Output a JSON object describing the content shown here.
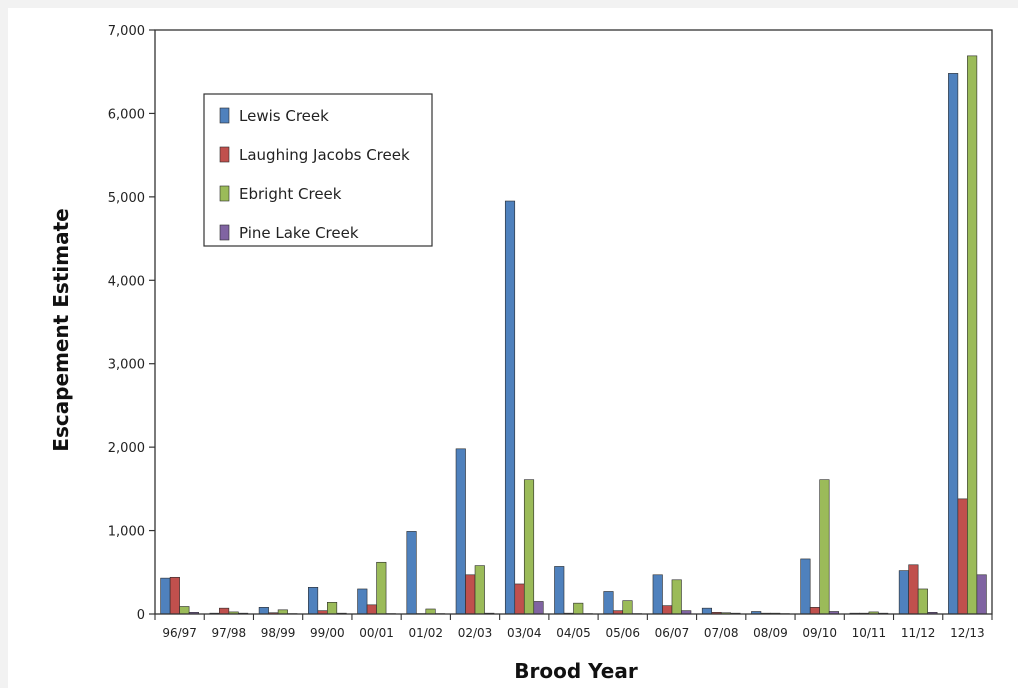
{
  "chart_data": {
    "type": "bar",
    "xlabel": "Brood Year",
    "ylabel": "Escapement Estimate",
    "ylim": [
      0,
      7000
    ],
    "yticks": [
      0,
      1000,
      2000,
      3000,
      4000,
      5000,
      6000,
      7000
    ],
    "ytick_labels": [
      "0",
      "1,000",
      "2,000",
      "3,000",
      "4,000",
      "5,000",
      "6,000",
      "7,000"
    ],
    "grid": false,
    "legend_position": "top-left",
    "categories": [
      "96/97",
      "97/98",
      "98/99",
      "99/00",
      "00/01",
      "01/02",
      "02/03",
      "03/04",
      "04/05",
      "05/06",
      "06/07",
      "07/08",
      "08/09",
      "09/10",
      "10/11",
      "11/12",
      "12/13"
    ],
    "series": [
      {
        "name": "Lewis Creek",
        "color": "#4f81bd",
        "values": [
          430,
          10,
          80,
          320,
          300,
          990,
          1980,
          4950,
          570,
          270,
          470,
          70,
          30,
          660,
          10,
          520,
          6480
        ]
      },
      {
        "name": "Laughing Jacobs Creek",
        "color": "#c0504d",
        "values": [
          440,
          70,
          15,
          40,
          110,
          5,
          470,
          360,
          10,
          40,
          100,
          20,
          10,
          80,
          10,
          590,
          1380
        ]
      },
      {
        "name": "Ebright Creek",
        "color": "#9bbb59",
        "values": [
          90,
          25,
          50,
          140,
          620,
          60,
          580,
          1610,
          130,
          160,
          410,
          15,
          10,
          1610,
          25,
          300,
          6690
        ]
      },
      {
        "name": "Pine Lake Creek",
        "color": "#8064a2",
        "values": [
          20,
          10,
          5,
          10,
          5,
          5,
          10,
          150,
          5,
          5,
          40,
          10,
          5,
          30,
          10,
          20,
          470
        ]
      }
    ]
  }
}
